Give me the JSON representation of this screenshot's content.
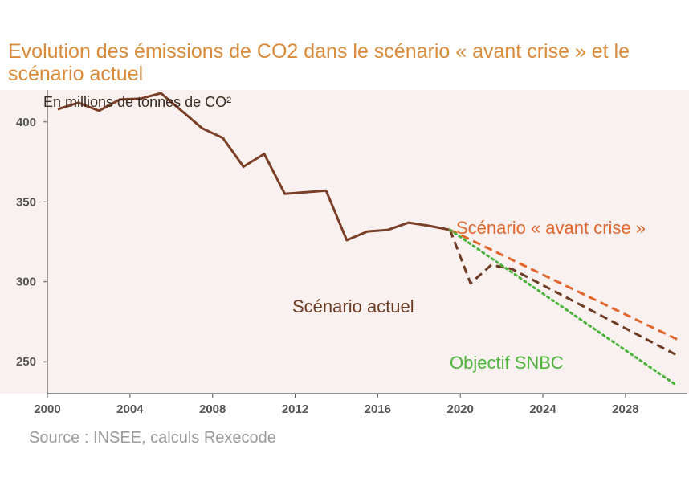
{
  "title": "Evolution des émissions de CO2 dans le scénario « avant crise » et le scénario actuel",
  "source": "Source : INSEE, calculs Rexecode",
  "colors": {
    "title": "#d98b3a",
    "historical": "#7a3f26",
    "actuel": "#6e3c24",
    "avant_crise": "#e0662e",
    "snbc": "#4db33d",
    "axis": "#555555"
  },
  "chart_data": {
    "type": "line",
    "title": "Evolution des émissions de CO2 dans le scénario « avant crise » et le scénario actuel",
    "ylabel": "En millions de tonnes de CO²",
    "xlabel": "",
    "xlim": [
      2000,
      2031
    ],
    "ylim": [
      230,
      420
    ],
    "x_ticks": [
      2000,
      2004,
      2008,
      2012,
      2016,
      2020,
      2024,
      2028
    ],
    "y_ticks": [
      250,
      300,
      350,
      400
    ],
    "grid": false,
    "series": [
      {
        "key": "historical",
        "style": "solid",
        "x": [
          2000.5,
          2001.5,
          2002.5,
          2003.5,
          2004.5,
          2005.5,
          2006.5,
          2007.5,
          2008.5,
          2009.5,
          2010.5,
          2011.5,
          2012.5,
          2013.5,
          2014.5,
          2015.5,
          2016.5,
          2017.5,
          2018.5,
          2019.5
        ],
        "values": [
          408,
          412,
          407,
          414,
          414.5,
          418,
          407,
          396,
          390,
          372,
          380,
          355,
          356,
          357,
          326,
          331.5,
          332.5,
          337,
          335,
          332.5
        ]
      },
      {
        "key": "actuel",
        "name": "Scénario actuel",
        "style": "dashed",
        "x": [
          2019.5,
          2020.5,
          2021.5,
          2022.5,
          2030.5
        ],
        "values": [
          332.5,
          299,
          310.5,
          308,
          254
        ]
      },
      {
        "key": "avant_crise",
        "name": "Scénario « avant crise »",
        "style": "dashed",
        "x": [
          2019.5,
          2030.5
        ],
        "values": [
          332.5,
          264
        ]
      },
      {
        "key": "snbc",
        "name": "Objectif SNBC",
        "style": "dotted",
        "x": [
          2019.5,
          2030.5
        ],
        "values": [
          332.5,
          235
        ]
      }
    ],
    "annotations": [
      {
        "series": "avant_crise",
        "text": "Scénario « avant crise »"
      },
      {
        "series": "actuel",
        "text": "Scénario actuel"
      },
      {
        "series": "snbc",
        "text": "Objectif SNBC"
      }
    ]
  }
}
